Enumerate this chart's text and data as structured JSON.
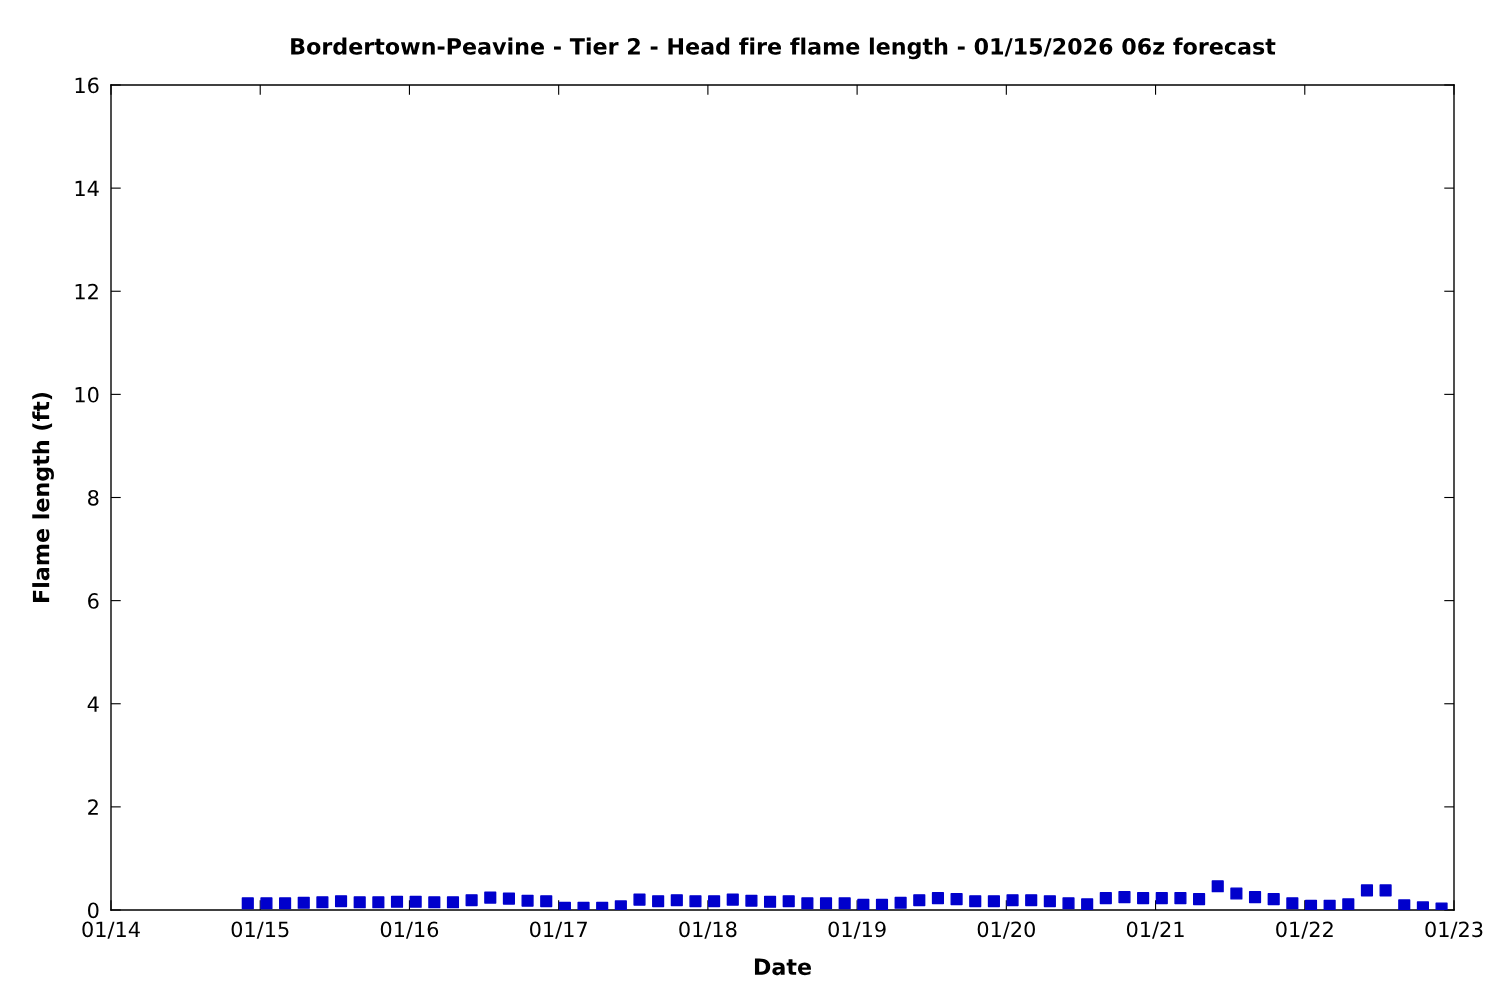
{
  "chart_data": {
    "type": "scatter",
    "title": "Bordertown-Peavine - Tier 2 - Head fire flame length - 01/15/2026 06z forecast",
    "xlabel": "Date",
    "ylabel": "Flame length (ft)",
    "x": [
      "2026-01-14T22:00",
      "2026-01-15T01:00",
      "2026-01-15T04:00",
      "2026-01-15T07:00",
      "2026-01-15T10:00",
      "2026-01-15T13:00",
      "2026-01-15T16:00",
      "2026-01-15T19:00",
      "2026-01-15T22:00",
      "2026-01-16T01:00",
      "2026-01-16T04:00",
      "2026-01-16T07:00",
      "2026-01-16T10:00",
      "2026-01-16T13:00",
      "2026-01-16T16:00",
      "2026-01-16T19:00",
      "2026-01-16T22:00",
      "2026-01-17T01:00",
      "2026-01-17T04:00",
      "2026-01-17T07:00",
      "2026-01-17T10:00",
      "2026-01-17T13:00",
      "2026-01-17T16:00",
      "2026-01-17T19:00",
      "2026-01-17T22:00",
      "2026-01-18T01:00",
      "2026-01-18T04:00",
      "2026-01-18T07:00",
      "2026-01-18T10:00",
      "2026-01-18T13:00",
      "2026-01-18T16:00",
      "2026-01-18T19:00",
      "2026-01-18T22:00",
      "2026-01-19T01:00",
      "2026-01-19T04:00",
      "2026-01-19T07:00",
      "2026-01-19T10:00",
      "2026-01-19T13:00",
      "2026-01-19T16:00",
      "2026-01-19T19:00",
      "2026-01-19T22:00",
      "2026-01-20T01:00",
      "2026-01-20T04:00",
      "2026-01-20T07:00",
      "2026-01-20T10:00",
      "2026-01-20T13:00",
      "2026-01-20T16:00",
      "2026-01-20T19:00",
      "2026-01-20T22:00",
      "2026-01-21T01:00",
      "2026-01-21T04:00",
      "2026-01-21T07:00",
      "2026-01-21T10:00",
      "2026-01-21T13:00",
      "2026-01-21T16:00",
      "2026-01-21T19:00",
      "2026-01-21T22:00",
      "2026-01-22T01:00",
      "2026-01-22T04:00",
      "2026-01-22T07:00",
      "2026-01-22T10:00",
      "2026-01-22T13:00",
      "2026-01-22T16:00",
      "2026-01-22T19:00",
      "2026-01-22T22:00"
    ],
    "series": [
      {
        "color": "#0000cc",
        "values": [
          0.13,
          0.13,
          0.13,
          0.14,
          0.15,
          0.17,
          0.15,
          0.15,
          0.16,
          0.16,
          0.15,
          0.15,
          0.19,
          0.24,
          0.22,
          0.18,
          0.17,
          0.04,
          0.04,
          0.04,
          0.07,
          0.2,
          0.17,
          0.19,
          0.17,
          0.17,
          0.2,
          0.18,
          0.16,
          0.17,
          0.13,
          0.13,
          0.13,
          0.1,
          0.1,
          0.14,
          0.19,
          0.23,
          0.21,
          0.17,
          0.17,
          0.19,
          0.19,
          0.17,
          0.13,
          0.11,
          0.23,
          0.25,
          0.23,
          0.23,
          0.23,
          0.21,
          0.46,
          0.32,
          0.25,
          0.21,
          0.13,
          0.08,
          0.08,
          0.11,
          0.38,
          0.38,
          0.09,
          0.05,
          0.03
        ]
      }
    ],
    "marker": "square",
    "grid": false,
    "xlim": [
      "2026-01-14",
      "2026-01-23"
    ],
    "xticks": [
      {
        "value": "2026-01-14",
        "label": "01/14"
      },
      {
        "value": "2026-01-15",
        "label": "01/15"
      },
      {
        "value": "2026-01-16",
        "label": "01/16"
      },
      {
        "value": "2026-01-17",
        "label": "01/17"
      },
      {
        "value": "2026-01-18",
        "label": "01/18"
      },
      {
        "value": "2026-01-19",
        "label": "01/19"
      },
      {
        "value": "2026-01-20",
        "label": "01/20"
      },
      {
        "value": "2026-01-21",
        "label": "01/21"
      },
      {
        "value": "2026-01-22",
        "label": "01/22"
      },
      {
        "value": "2026-01-23",
        "label": "01/23"
      }
    ],
    "ylim": [
      0,
      16
    ],
    "yticks": [
      0,
      2,
      4,
      6,
      8,
      10,
      12,
      14,
      16
    ]
  }
}
